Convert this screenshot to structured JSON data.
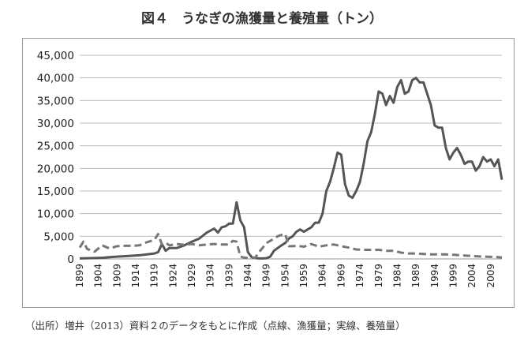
{
  "page_title": "図４　うなぎの漁獲量と養殖量（トン）",
  "source_note": "（出所）増井（2013）資料２のデータをもとに作成（点線、漁獲量；実線、養殖量）",
  "chart_data": {
    "type": "line",
    "title": "図４　うなぎの漁獲量と養殖量（トン）",
    "xlabel": "",
    "ylabel": "",
    "ylim": [
      0,
      45000
    ],
    "xlim": [
      1899,
      2012
    ],
    "yticks": [
      0,
      5000,
      10000,
      15000,
      20000,
      25000,
      30000,
      35000,
      40000,
      45000
    ],
    "ytick_labels": [
      "0",
      "5,000",
      "10,000",
      "15,000",
      "20,000",
      "25,000",
      "30,000",
      "35,000",
      "40,000",
      "45,000"
    ],
    "xtick_labels": [
      "1899",
      "1904",
      "1909",
      "1914",
      "1919",
      "1924",
      "1929",
      "1934",
      "1939",
      "1944",
      "1949",
      "1954",
      "1959",
      "1964",
      "1969",
      "1974",
      "1979",
      "1984",
      "1989",
      "1994",
      "1999",
      "2004",
      "2009"
    ],
    "grid": true,
    "legend": "none",
    "series": [
      {
        "name": "養殖量",
        "style": "solid",
        "color": "#555555",
        "x": [
          1899,
          1901,
          1903,
          1905,
          1907,
          1909,
          1911,
          1913,
          1915,
          1917,
          1919,
          1920,
          1921,
          1922,
          1923,
          1925,
          1927,
          1929,
          1931,
          1933,
          1935,
          1936,
          1937,
          1938,
          1939,
          1940,
          1941,
          1942,
          1943,
          1944,
          1945,
          1946,
          1947,
          1948,
          1949,
          1950,
          1951,
          1952,
          1953,
          1954,
          1955,
          1956,
          1957,
          1958,
          1959,
          1960,
          1961,
          1962,
          1963,
          1964,
          1965,
          1966,
          1967,
          1968,
          1969,
          1970,
          1971,
          1972,
          1973,
          1974,
          1975,
          1976,
          1977,
          1978,
          1979,
          1980,
          1981,
          1982,
          1983,
          1984,
          1985,
          1986,
          1987,
          1988,
          1989,
          1990,
          1991,
          1992,
          1993,
          1994,
          1995,
          1996,
          1997,
          1998,
          1999,
          2000,
          2001,
          2002,
          2003,
          2004,
          2005,
          2006,
          2007,
          2008,
          2009,
          2010,
          2011,
          2012
        ],
        "values": [
          100,
          150,
          200,
          250,
          400,
          500,
          600,
          700,
          800,
          1000,
          1200,
          1500,
          3300,
          1800,
          2400,
          2400,
          3000,
          3800,
          4500,
          5800,
          6700,
          5800,
          7000,
          7200,
          7800,
          7800,
          12500,
          8500,
          7000,
          1500,
          400,
          200,
          100,
          100,
          150,
          500,
          1800,
          2400,
          3000,
          3500,
          4500,
          5000,
          6000,
          6500,
          6000,
          6500,
          7000,
          8000,
          8000,
          10000,
          15000,
          17000,
          20000,
          23500,
          23000,
          16500,
          14000,
          13500,
          15000,
          17000,
          21000,
          26000,
          28000,
          32000,
          37000,
          36500,
          34000,
          36000,
          34500,
          38000,
          39500,
          36500,
          37000,
          39500,
          40000,
          39000,
          39000,
          36500,
          34000,
          29500,
          29000,
          29000,
          24500,
          22000,
          23500,
          24500,
          23000,
          21000,
          21500,
          21500,
          19500,
          20500,
          22500,
          21500,
          22000,
          20500,
          22000,
          17500
        ]
      },
      {
        "name": "漁獲量",
        "style": "dashed",
        "color": "#777777",
        "x": [
          1899,
          1900,
          1901,
          1903,
          1905,
          1907,
          1909,
          1911,
          1913,
          1915,
          1917,
          1919,
          1920,
          1921,
          1922,
          1923,
          1925,
          1927,
          1929,
          1931,
          1933,
          1935,
          1937,
          1939,
          1940,
          1941,
          1942,
          1943,
          1944,
          1945,
          1946,
          1947,
          1948,
          1949,
          1950,
          1951,
          1952,
          1953,
          1954,
          1955,
          1956,
          1957,
          1958,
          1959,
          1961,
          1963,
          1965,
          1967,
          1969,
          1971,
          1973,
          1975,
          1977,
          1979,
          1981,
          1983,
          1985,
          1987,
          1989,
          1991,
          1993,
          1995,
          1997,
          1999,
          2001,
          2003,
          2005,
          2007,
          2009,
          2011,
          2012
        ],
        "values": [
          2500,
          3800,
          2200,
          1600,
          3000,
          2300,
          2800,
          2900,
          2900,
          3000,
          3700,
          4200,
          5500,
          3200,
          3600,
          3000,
          3300,
          3100,
          3300,
          3000,
          3200,
          3300,
          3200,
          3200,
          4000,
          3800,
          500,
          300,
          200,
          200,
          300,
          1500,
          2500,
          3500,
          4000,
          4500,
          5000,
          5300,
          5500,
          2800,
          2800,
          2900,
          2800,
          2700,
          3300,
          2700,
          3000,
          3200,
          2800,
          2500,
          2100,
          2000,
          2000,
          2000,
          1800,
          1800,
          1400,
          1200,
          1200,
          1100,
          1000,
          1000,
          1000,
          900,
          800,
          700,
          600,
          500,
          450,
          400,
          300
        ]
      }
    ]
  }
}
